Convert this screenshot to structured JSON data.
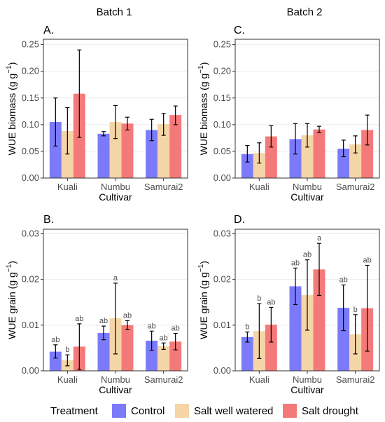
{
  "batch_titles": [
    "Batch 1",
    "Batch 2"
  ],
  "legend": {
    "title": "Treatment",
    "items": [
      {
        "label": "Control",
        "color": "#7b7bfa"
      },
      {
        "label": "Salt well watered",
        "color": "#f5d5a6"
      },
      {
        "label": "Salt drought",
        "color": "#f47a7a"
      }
    ]
  },
  "chart_data": [
    {
      "panel_label": "A.",
      "type": "bar",
      "categories": [
        "Kuali",
        "Numbu",
        "Samurai2"
      ],
      "xlabel": "Cultivar",
      "ylabel_main": "WUE biomass (g g",
      "ylabel_sup": "−1",
      "ylabel_close": ")",
      "ylim": [
        0,
        0.26
      ],
      "yticks": [
        0,
        0.05,
        0.1,
        0.15,
        0.2,
        0.25
      ],
      "ytick_labels": [
        "0.00",
        "0.05",
        "0.10",
        "0.15",
        "0.20",
        "0.25"
      ],
      "series": [
        {
          "name": "Control",
          "values": [
            0.105,
            0.083,
            0.09
          ],
          "err_low": [
            0.06,
            0.079,
            0.07
          ],
          "err_high": [
            0.15,
            0.087,
            0.11
          ],
          "labels": [
            "",
            "",
            ""
          ]
        },
        {
          "name": "Salt well watered",
          "values": [
            0.088,
            0.105,
            0.101
          ],
          "err_low": [
            0.045,
            0.074,
            0.08
          ],
          "err_high": [
            0.132,
            0.136,
            0.121
          ],
          "labels": [
            "",
            "",
            ""
          ]
        },
        {
          "name": "Salt drought",
          "values": [
            0.158,
            0.102,
            0.118
          ],
          "err_low": [
            0.076,
            0.09,
            0.1
          ],
          "err_high": [
            0.24,
            0.114,
            0.135
          ],
          "labels": [
            "",
            "",
            ""
          ]
        }
      ]
    },
    {
      "panel_label": "C.",
      "type": "bar",
      "categories": [
        "Kuali",
        "Numbu",
        "Samurai2"
      ],
      "xlabel": "Cultivar",
      "ylabel_main": "WUE biomass (g g",
      "ylabel_sup": "−1",
      "ylabel_close": ")",
      "ylim": [
        0,
        0.26
      ],
      "yticks": [
        0,
        0.05,
        0.1,
        0.15,
        0.2,
        0.25
      ],
      "ytick_labels": [
        "0.00",
        "0.05",
        "0.10",
        "0.15",
        "0.20",
        "0.25"
      ],
      "series": [
        {
          "name": "Control",
          "values": [
            0.045,
            0.073,
            0.055
          ],
          "err_low": [
            0.03,
            0.045,
            0.04
          ],
          "err_high": [
            0.061,
            0.102,
            0.071
          ],
          "labels": [
            "",
            "",
            ""
          ]
        },
        {
          "name": "Salt well watered",
          "values": [
            0.047,
            0.08,
            0.063
          ],
          "err_low": [
            0.028,
            0.058,
            0.047
          ],
          "err_high": [
            0.066,
            0.102,
            0.079
          ],
          "labels": [
            "",
            "",
            ""
          ]
        },
        {
          "name": "Salt drought",
          "values": [
            0.078,
            0.091,
            0.09
          ],
          "err_low": [
            0.058,
            0.085,
            0.062
          ],
          "err_high": [
            0.098,
            0.097,
            0.118
          ],
          "labels": [
            "",
            "",
            ""
          ]
        }
      ]
    },
    {
      "panel_label": "B.",
      "type": "bar",
      "categories": [
        "Kuali",
        "Numbu",
        "Samurai2"
      ],
      "xlabel": "Cultivar",
      "ylabel_main": "WUE grain (g g",
      "ylabel_sup": "−1",
      "ylabel_close": ")",
      "ylim": [
        0,
        0.031
      ],
      "yticks": [
        0,
        0.01,
        0.02,
        0.03
      ],
      "ytick_labels": [
        "0.00",
        "0.01",
        "0.02",
        "0.03"
      ],
      "series": [
        {
          "name": "Control",
          "values": [
            0.0042,
            0.0083,
            0.0066
          ],
          "err_low": [
            0.0028,
            0.0068,
            0.0045
          ],
          "err_high": [
            0.0057,
            0.0098,
            0.0087
          ],
          "labels": [
            "ab",
            "ab",
            "ab"
          ]
        },
        {
          "name": "Salt well watered",
          "values": [
            0.0023,
            0.0115,
            0.0054
          ],
          "err_low": [
            0.0011,
            0.0037,
            0.0047
          ],
          "err_high": [
            0.0035,
            0.0192,
            0.0061
          ],
          "labels": [
            "b",
            "a",
            "ab"
          ]
        },
        {
          "name": "Salt drought",
          "values": [
            0.0053,
            0.01,
            0.0064
          ],
          "err_low": [
            0.0003,
            0.009,
            0.0046
          ],
          "err_high": [
            0.0103,
            0.011,
            0.0082
          ],
          "labels": [
            "ab",
            "ab",
            "ab"
          ]
        }
      ]
    },
    {
      "panel_label": "D.",
      "type": "bar",
      "categories": [
        "Kuali",
        "Numbu",
        "Samurai2"
      ],
      "xlabel": "Cultivar",
      "ylabel_main": "WUE grain (g g",
      "ylabel_sup": "−1",
      "ylabel_close": ")",
      "ylim": [
        0,
        0.031
      ],
      "yticks": [
        0,
        0.01,
        0.02,
        0.03
      ],
      "ytick_labels": [
        "0.00",
        "0.01",
        "0.02",
        "0.03"
      ],
      "series": [
        {
          "name": "Control",
          "values": [
            0.0074,
            0.0185,
            0.0138
          ],
          "err_low": [
            0.0063,
            0.0145,
            0.0088
          ],
          "err_high": [
            0.0085,
            0.0225,
            0.0188
          ],
          "labels": [
            "b",
            "ab",
            "ab"
          ]
        },
        {
          "name": "Salt well watered",
          "values": [
            0.0087,
            0.0166,
            0.008
          ],
          "err_low": [
            0.0027,
            0.0089,
            0.0037
          ],
          "err_high": [
            0.0147,
            0.0243,
            0.0123
          ],
          "labels": [
            "b",
            "ab",
            "b"
          ]
        },
        {
          "name": "Salt drought",
          "values": [
            0.0101,
            0.0222,
            0.0137
          ],
          "err_low": [
            0.0063,
            0.0165,
            0.0043
          ],
          "err_high": [
            0.0139,
            0.0279,
            0.0231
          ],
          "labels": [
            "ab",
            "a",
            "ab"
          ]
        }
      ]
    }
  ]
}
